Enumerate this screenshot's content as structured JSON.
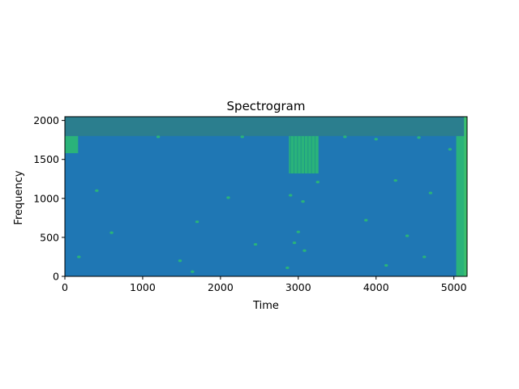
{
  "chart_data": {
    "type": "heatmap",
    "title": "Spectrogram",
    "xlabel": "Time",
    "ylabel": "Frequency",
    "xlim": [
      0,
      5170
    ],
    "ylim": [
      0,
      2048
    ],
    "xticks": [
      0,
      1000,
      2000,
      3000,
      4000,
      5000
    ],
    "yticks": [
      0,
      500,
      1000,
      1500,
      2000
    ],
    "colors": {
      "background": "#1f77b4",
      "high_band": "#2b7e8e",
      "hot": "#2ab37a",
      "edge_hot": "#3cbf6e"
    },
    "regions": [
      {
        "name": "high-frequency-band",
        "t": [
          0,
          5130
        ],
        "f": [
          1800,
          2048
        ],
        "level": "high_band"
      },
      {
        "name": "left-edge-patch",
        "t": [
          0,
          170
        ],
        "f": [
          1580,
          1800
        ],
        "level": "hot"
      },
      {
        "name": "burst-3000",
        "t": [
          2880,
          3260
        ],
        "f": [
          1320,
          1800
        ],
        "level": "hot"
      },
      {
        "name": "right-edge-column",
        "t": [
          5030,
          5170
        ],
        "f": [
          0,
          1800
        ],
        "level": "hot"
      },
      {
        "name": "right-edge-strip",
        "t": [
          5130,
          5170
        ],
        "f": [
          0,
          2048
        ],
        "level": "edge_hot"
      }
    ],
    "speckles": [
      {
        "t": 180,
        "f": 250
      },
      {
        "t": 410,
        "f": 1100
      },
      {
        "t": 600,
        "f": 560
      },
      {
        "t": 1480,
        "f": 200
      },
      {
        "t": 1700,
        "f": 700
      },
      {
        "t": 1640,
        "f": 60
      },
      {
        "t": 1200,
        "f": 1790
      },
      {
        "t": 2100,
        "f": 1010
      },
      {
        "t": 2450,
        "f": 410
      },
      {
        "t": 2900,
        "f": 1040
      },
      {
        "t": 2950,
        "f": 430
      },
      {
        "t": 3080,
        "f": 330
      },
      {
        "t": 3000,
        "f": 570
      },
      {
        "t": 3060,
        "f": 960
      },
      {
        "t": 3600,
        "f": 1790
      },
      {
        "t": 4000,
        "f": 1760
      },
      {
        "t": 4250,
        "f": 1230
      },
      {
        "t": 4400,
        "f": 520
      },
      {
        "t": 4550,
        "f": 1780
      },
      {
        "t": 4700,
        "f": 1070
      },
      {
        "t": 4950,
        "f": 1630
      },
      {
        "t": 2860,
        "f": 110
      },
      {
        "t": 3250,
        "f": 1210
      },
      {
        "t": 3870,
        "f": 720
      },
      {
        "t": 4620,
        "f": 250
      },
      {
        "t": 4130,
        "f": 140
      },
      {
        "t": 2280,
        "f": 1790
      }
    ]
  }
}
